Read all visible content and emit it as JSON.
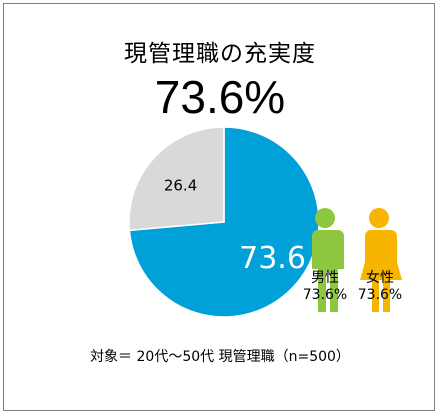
{
  "header": {
    "title": "現管理職の充実度",
    "overall_value": "73.6%"
  },
  "chart_data": {
    "type": "pie",
    "title": "現管理職の充実度",
    "slices": [
      {
        "label": "73.6",
        "value": 73.6,
        "color": "#00a0d8"
      },
      {
        "label": "26.4",
        "value": 26.4,
        "color": "#d9d9d9"
      }
    ]
  },
  "gender": {
    "male": {
      "label": "男性",
      "value": "73.6%",
      "color": "#8dc63f",
      "icon": "male-person-icon"
    },
    "female": {
      "label": "女性",
      "value": "73.6%",
      "color": "#f7b500",
      "icon": "female-person-icon"
    }
  },
  "footer": "対象＝ 20代～50代 現管理職（n=500）"
}
